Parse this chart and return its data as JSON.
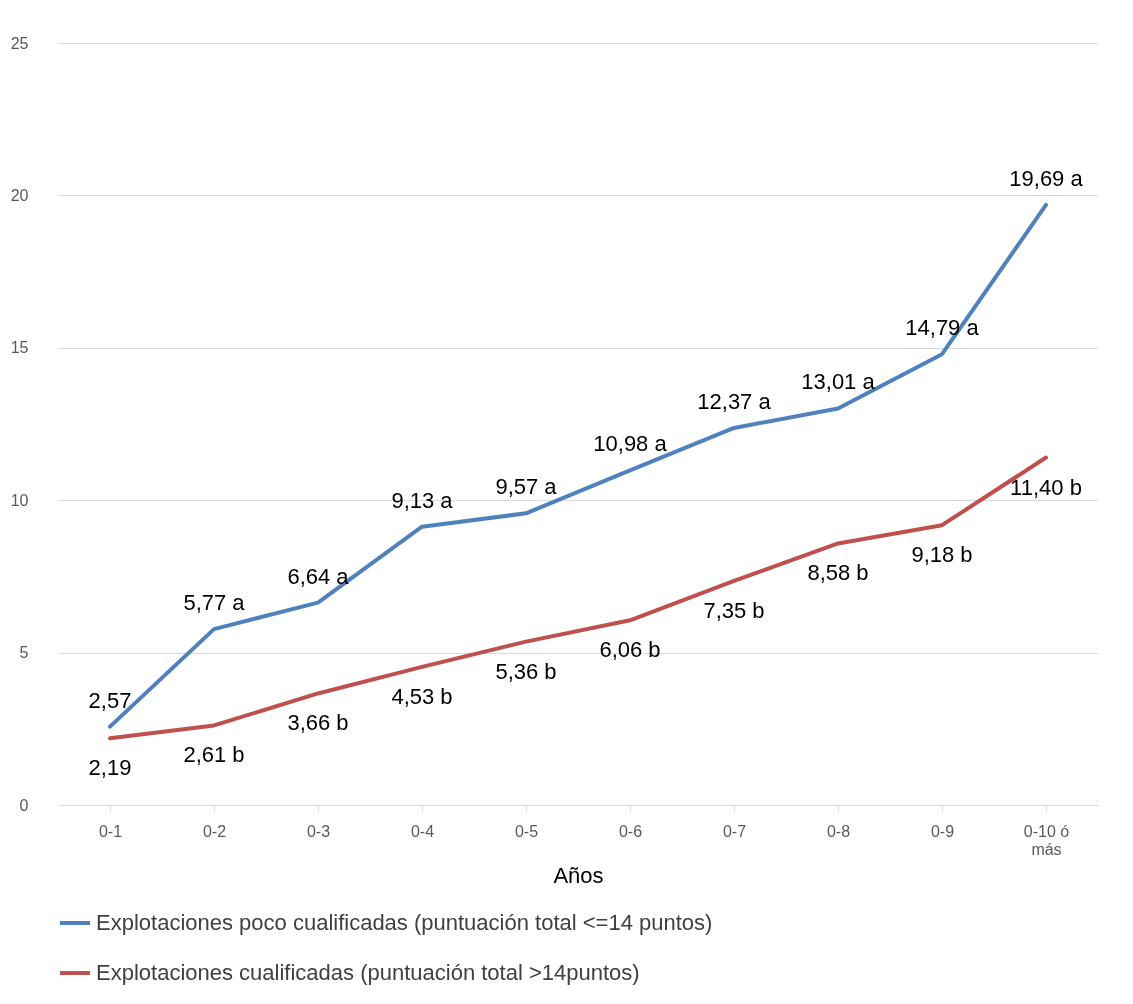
{
  "chart_data": {
    "type": "line",
    "xlabel": "Años",
    "categories": [
      "0-1",
      "0-2",
      "0-3",
      "0-4",
      "0-5",
      "0-6",
      "0-7",
      "0-8",
      "0-9",
      "0-10 ó más"
    ],
    "series": [
      {
        "name": "Explotaciones poco cualificadas (puntuación total <=14 puntos)",
        "color": "#4f81bd",
        "values": [
          2.57,
          5.77,
          6.64,
          9.13,
          9.57,
          10.98,
          12.37,
          13.01,
          14.79,
          19.69
        ],
        "value_labels": [
          "2,57",
          "5,77 a",
          "6,64 a",
          "9,13 a",
          "9,57 a",
          "10,98 a",
          "12,37 a",
          "13,01 a",
          "14,79 a",
          "19,69 a"
        ]
      },
      {
        "name": "Explotaciones cualificadas (puntuación total >14puntos)",
        "color": "#c0504d",
        "values": [
          2.19,
          2.61,
          3.66,
          4.53,
          5.36,
          6.06,
          7.35,
          8.58,
          9.18,
          11.4
        ],
        "value_labels": [
          "2,19",
          "2,61 b",
          "3,66 b",
          "4,53 b",
          "5,36 b",
          "6,06 b",
          "7,35 b",
          "8,58 b",
          "9,18 b",
          "11,40 b"
        ]
      }
    ],
    "ylim": [
      0,
      25
    ],
    "yticks": [
      0,
      5,
      10,
      15,
      20,
      25
    ],
    "grid": "y",
    "legend": "bottom",
    "line_style": "solid"
  }
}
